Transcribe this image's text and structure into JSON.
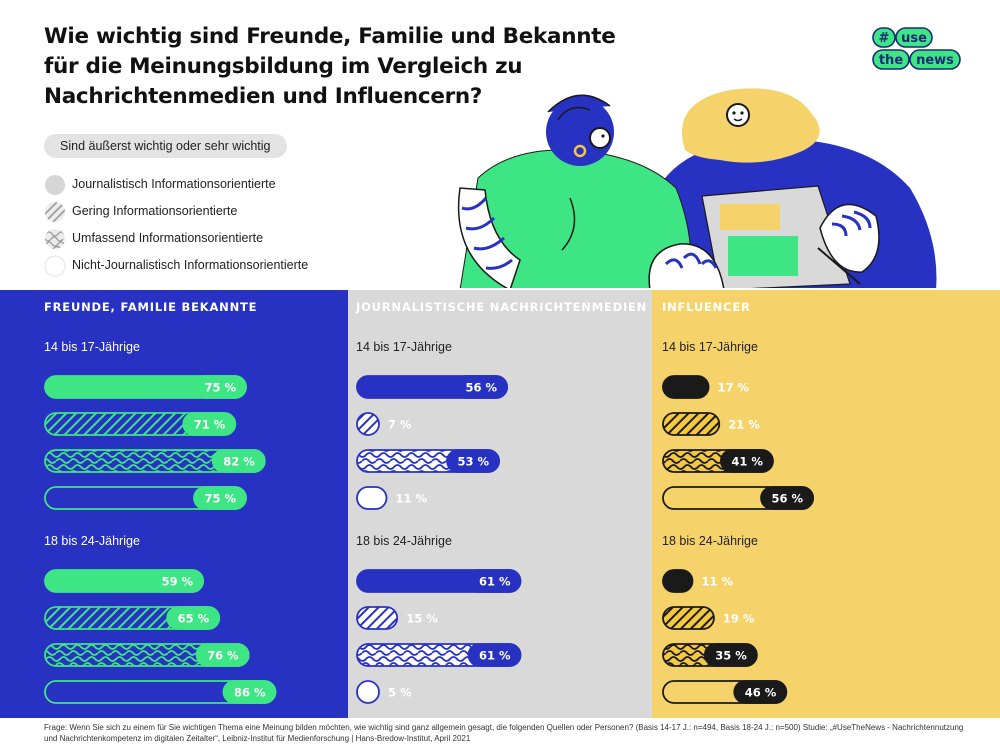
{
  "title_lines": [
    "Wie wichtig sind Freunde, Familie und Bekannte",
    "für die Meinungsbildung im Vergleich zu",
    "Nachrichtenmedien und Influencern?"
  ],
  "logo": {
    "hash": "#",
    "word1": "use",
    "word2": "the",
    "word3": "news"
  },
  "legend": {
    "header": "Sind äußerst wichtig oder sehr wichtig",
    "items": [
      {
        "label": "Journalistisch Informationsorientierte",
        "pattern": "solid"
      },
      {
        "label": "Gering Informationsorientierte",
        "pattern": "hatch"
      },
      {
        "label": "Umfassend Informationsorientierte",
        "pattern": "squiggle"
      },
      {
        "label": "Nicht-Journalistisch Informationsorientierte",
        "pattern": "outline"
      }
    ]
  },
  "colors": {
    "blue": "#2832c2",
    "green": "#3ee584",
    "yellow": "#f5d36a",
    "gray": "#d9d9d9",
    "dark": "#1a1a1a",
    "gold": "#f5c842"
  },
  "chart_data": {
    "type": "bar",
    "unit": "%",
    "panels": [
      {
        "title": "FREUNDE, FAMILIE BEKANNTE",
        "theme": "blue",
        "groups": [
          {
            "label": "14 bis 17-Jährige",
            "values": [
              75,
              71,
              82,
              75
            ]
          },
          {
            "label": "18 bis 24-Jährige",
            "values": [
              59,
              65,
              76,
              86
            ]
          }
        ]
      },
      {
        "title": "JOURNALISTISCHE NACHRICHTENMEDIEN",
        "theme": "gray",
        "groups": [
          {
            "label": "14 bis 17-Jährige",
            "values": [
              56,
              7,
              53,
              11
            ]
          },
          {
            "label": "18 bis 24-Jährige",
            "values": [
              61,
              15,
              61,
              5
            ]
          }
        ]
      },
      {
        "title": "INFLUENCER",
        "theme": "yellow",
        "groups": [
          {
            "label": "14 bis 17-Jährige",
            "values": [
              17,
              21,
              41,
              56
            ]
          },
          {
            "label": "18 bis 24-Jährige",
            "values": [
              11,
              19,
              35,
              46
            ]
          }
        ]
      }
    ]
  },
  "footer": "Frage: Wenn Sie sich zu einem für Sie wichtigen Thema eine Meinung bilden möchten, wie wichtig sind ganz allgemein gesagt, die folgenden Quellen oder Personen? (Basis 14-17 J.: n=494, Basis 18-24 J.: n=500) Studie: „#UseTheNews - Nachrichtennutzung und Nachrichtenkompetenz im digitalen Zeitalter“, Leibniz-Institut für Medienforschung | Hans-Bredow-Institut, April 2021"
}
